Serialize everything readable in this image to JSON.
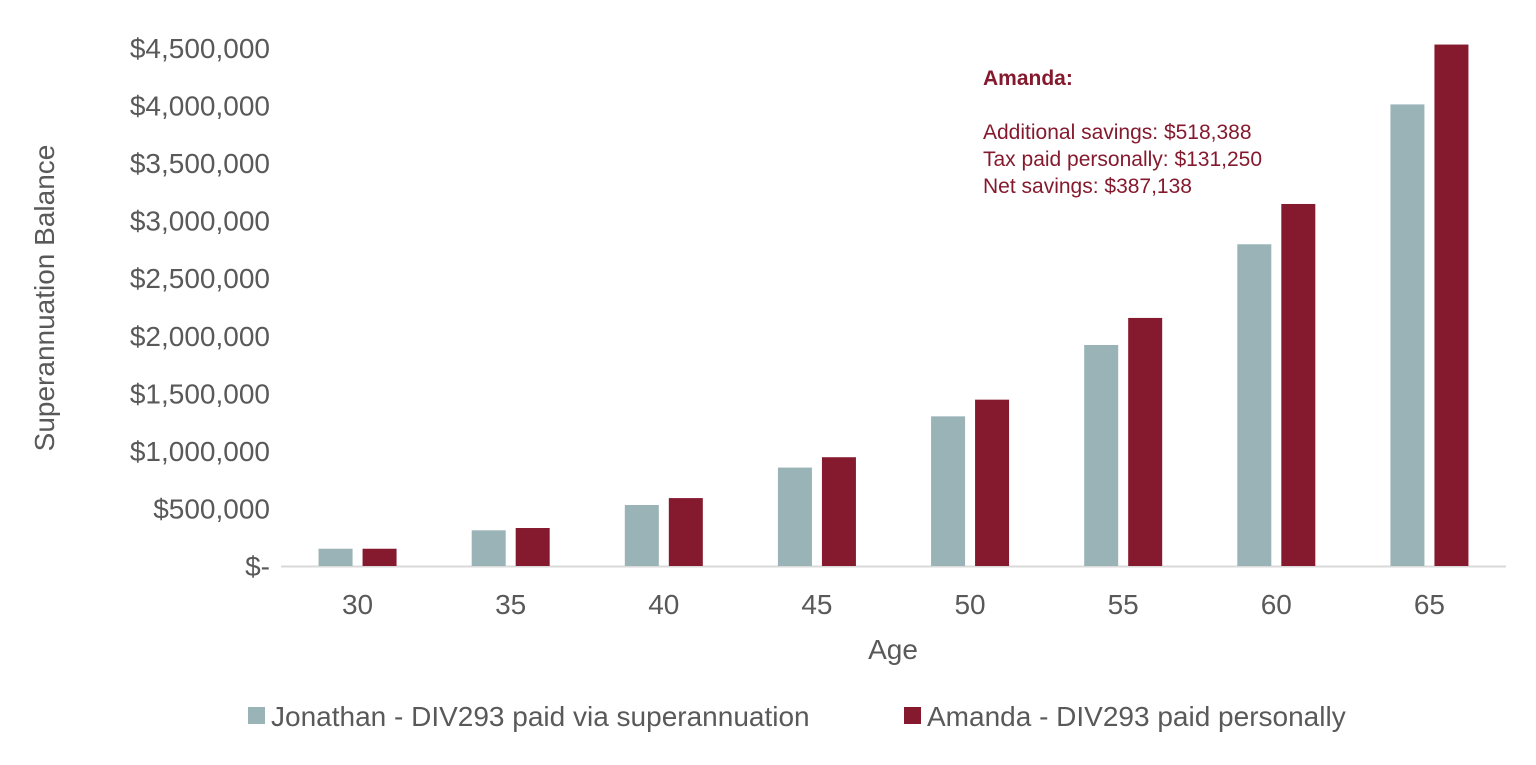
{
  "chart_data": {
    "type": "bar",
    "title": "",
    "xlabel": "Age",
    "ylabel": "Superannuation Balance",
    "categories": [
      "30",
      "35",
      "40",
      "45",
      "50",
      "55",
      "60",
      "65"
    ],
    "series": [
      {
        "name": "Jonathan - DIV293 paid via superannuation",
        "color": "#9ab3b6",
        "values": [
          150000,
          310000,
          530000,
          855000,
          1300000,
          1920000,
          2795000,
          4010000
        ]
      },
      {
        "name": "Amanda - DIV293 paid personally",
        "color": "#851a2e",
        "values": [
          150000,
          330000,
          590000,
          945000,
          1445000,
          2155000,
          3145000,
          4530000
        ]
      }
    ],
    "ylim": [
      0,
      4500000
    ],
    "yticks": [
      0,
      500000,
      1000000,
      1500000,
      2000000,
      2500000,
      3000000,
      3500000,
      4000000,
      4500000
    ],
    "ytick_labels": [
      "$-",
      "$500,000",
      "$1,000,000",
      "$1,500,000",
      "$2,000,000",
      "$2,500,000",
      "$3,000,000",
      "$3,500,000",
      "$4,000,000",
      "$4,500,000"
    ],
    "grid": false,
    "legend_position": "bottom",
    "annotation": {
      "title": "Amanda:",
      "lines": [
        "Additional savings: $518,388",
        "Tax paid personally: $131,250",
        "Net savings: $387,138"
      ],
      "color": "#851a2e"
    }
  }
}
